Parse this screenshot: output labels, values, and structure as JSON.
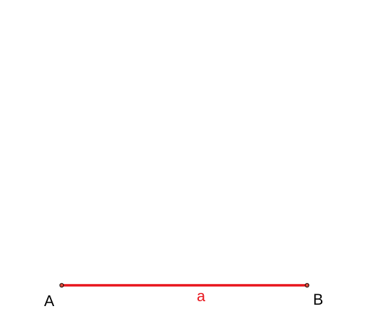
{
  "diagram": {
    "segment": {
      "label": "a",
      "color": "#e8141b"
    },
    "points": [
      {
        "label": "A"
      },
      {
        "label": "B"
      }
    ],
    "point_fill": "#d94a3a",
    "point_stroke": "#000000",
    "point_label_color": "#000000"
  }
}
